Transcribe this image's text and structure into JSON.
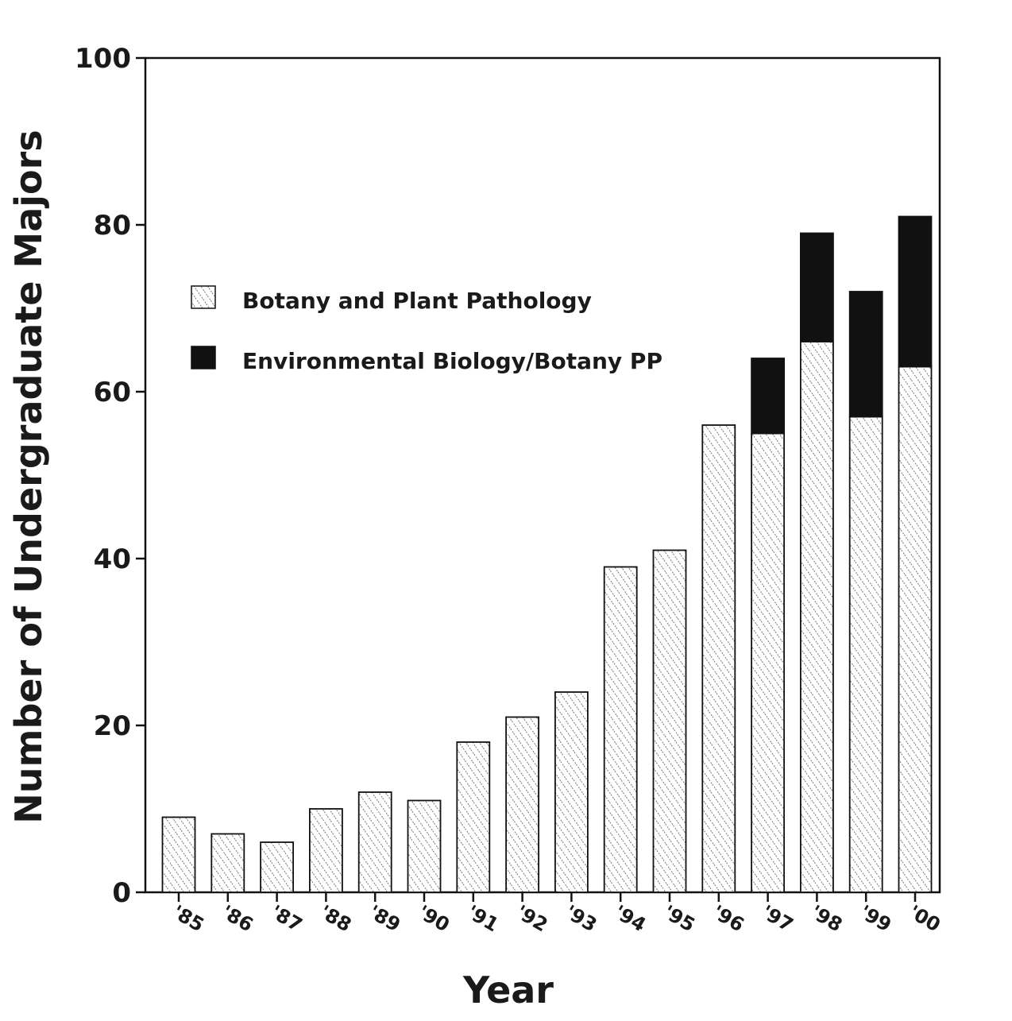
{
  "chart_data": {
    "type": "bar",
    "stacked": true,
    "title": "",
    "xlabel": "Year",
    "ylabel": "Number of Undergraduate Majors",
    "ylim": [
      0,
      100
    ],
    "yticks": [
      0,
      20,
      40,
      60,
      80,
      100
    ],
    "grid": false,
    "legend_position": "upper-left",
    "categories": [
      "'85",
      "'86",
      "'87",
      "'88",
      "'89",
      "'90",
      "'91",
      "'92",
      "'93",
      "'94",
      "'95",
      "'96",
      "'97",
      "'98",
      "'99",
      "'00"
    ],
    "series": [
      {
        "name": "Botany and Plant Pathology",
        "pattern": "hatched",
        "color": "#ffffff",
        "values": [
          9,
          7,
          6,
          10,
          12,
          11,
          18,
          21,
          24,
          39,
          41,
          56,
          55,
          66,
          57,
          63
        ]
      },
      {
        "name": "Environmental Biology/Botany PP",
        "pattern": "solid",
        "color": "#111111",
        "values": [
          0,
          0,
          0,
          0,
          0,
          0,
          0,
          0,
          0,
          0,
          0,
          0,
          9,
          13,
          15,
          18
        ]
      }
    ]
  }
}
